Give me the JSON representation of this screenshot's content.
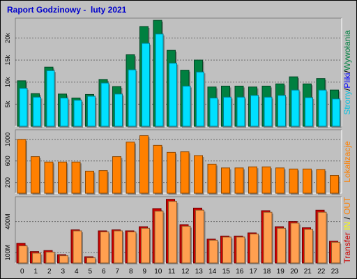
{
  "title": "Raport Godzinowy -  luty 2021",
  "colors": {
    "hits": "#008040",
    "files": "#0080ff",
    "pages": "#00e0ff",
    "visits": "#ff8000",
    "kbytes_out": "#cc0000",
    "kbytes_in": "#ffa050"
  },
  "right_labels": {
    "top": [
      {
        "text": "Strony",
        "color": "#00c0e0"
      },
      {
        "text": "/",
        "color": "#000000"
      },
      {
        "text": "Pliki",
        "color": "#0000ff"
      },
      {
        "text": "/",
        "color": "#000000"
      },
      {
        "text": "Wywołania",
        "color": "#008040"
      }
    ],
    "middle": [
      {
        "text": "Lokalizacje",
        "color": "#ff8000"
      }
    ],
    "bottom": [
      {
        "text": "Transfer",
        "color": "#cc0000"
      },
      {
        "text": " IN",
        "color": "#ffff00"
      },
      {
        "text": " / ",
        "color": "#000000"
      },
      {
        "text": "OUT",
        "color": "#ff8000"
      }
    ]
  },
  "chart_data": [
    {
      "type": "bar",
      "panel": "requests",
      "categories": [
        "0",
        "1",
        "2",
        "3",
        "4",
        "5",
        "6",
        "7",
        "8",
        "9",
        "10",
        "11",
        "12",
        "13",
        "14",
        "15",
        "16",
        "17",
        "18",
        "19",
        "20",
        "21",
        "22",
        "23"
      ],
      "y_ticks": [
        "5k",
        "10k",
        "15k",
        "20k"
      ],
      "ylim": [
        0,
        24500
      ],
      "series": [
        {
          "name": "Wywołania",
          "values": [
            10300,
            7400,
            13400,
            7300,
            6400,
            7200,
            10600,
            9000,
            16200,
            22600,
            24000,
            17200,
            12700,
            15000,
            8900,
            9100,
            9100,
            8900,
            9100,
            9600,
            11200,
            9600,
            10800,
            8200
          ]
        },
        {
          "name": "Pliki",
          "values": [
            5700,
            2800,
            7200,
            3600,
            4200,
            1800,
            5300,
            4500,
            9200,
            15200,
            16600,
            10500,
            5200,
            8900,
            3300,
            3500,
            4300,
            3400,
            4300,
            3900,
            5300,
            4800,
            4600,
            2500
          ]
        },
        {
          "name": "Strony",
          "values": [
            8600,
            6600,
            12600,
            6400,
            5900,
            6800,
            9800,
            7300,
            12800,
            18800,
            20900,
            14300,
            9100,
            12300,
            6400,
            6600,
            6600,
            7000,
            6600,
            7000,
            8200,
            6500,
            8200,
            6200
          ]
        }
      ]
    },
    {
      "type": "bar",
      "panel": "visits",
      "categories": [
        "0",
        "1",
        "2",
        "3",
        "4",
        "5",
        "6",
        "7",
        "8",
        "9",
        "10",
        "11",
        "12",
        "13",
        "14",
        "15",
        "16",
        "17",
        "18",
        "19",
        "20",
        "21",
        "22",
        "23"
      ],
      "y_ticks": [
        "200",
        "600",
        "1000"
      ],
      "ylim": [
        0,
        1180
      ],
      "series": [
        {
          "name": "Lokalizacje",
          "values": [
            1000,
            680,
            580,
            580,
            580,
            410,
            420,
            680,
            950,
            1070,
            890,
            760,
            770,
            700,
            540,
            470,
            470,
            490,
            490,
            470,
            450,
            450,
            440,
            330
          ]
        }
      ]
    },
    {
      "type": "bar",
      "panel": "kbytes",
      "categories": [
        "0",
        "1",
        "2",
        "3",
        "4",
        "5",
        "6",
        "7",
        "8",
        "9",
        "10",
        "11",
        "12",
        "13",
        "14",
        "15",
        "16",
        "17",
        "18",
        "19",
        "20",
        "21",
        "22",
        "23"
      ],
      "y_ticks": [
        "100M",
        "400M"
      ],
      "ylim": [
        0,
        640
      ],
      "series": [
        {
          "name": "Transfer",
          "values": [
            190,
            110,
            120,
            80,
            320,
            60,
            310,
            320,
            310,
            350,
            525,
            615,
            370,
            530,
            230,
            260,
            260,
            290,
            505,
            350,
            400,
            340,
            510,
            210
          ]
        },
        {
          "name": "OUT",
          "values": [
            165,
            95,
            105,
            70,
            310,
            50,
            300,
            310,
            300,
            335,
            500,
            595,
            355,
            510,
            220,
            250,
            250,
            280,
            490,
            335,
            385,
            325,
            490,
            200
          ]
        }
      ]
    }
  ]
}
